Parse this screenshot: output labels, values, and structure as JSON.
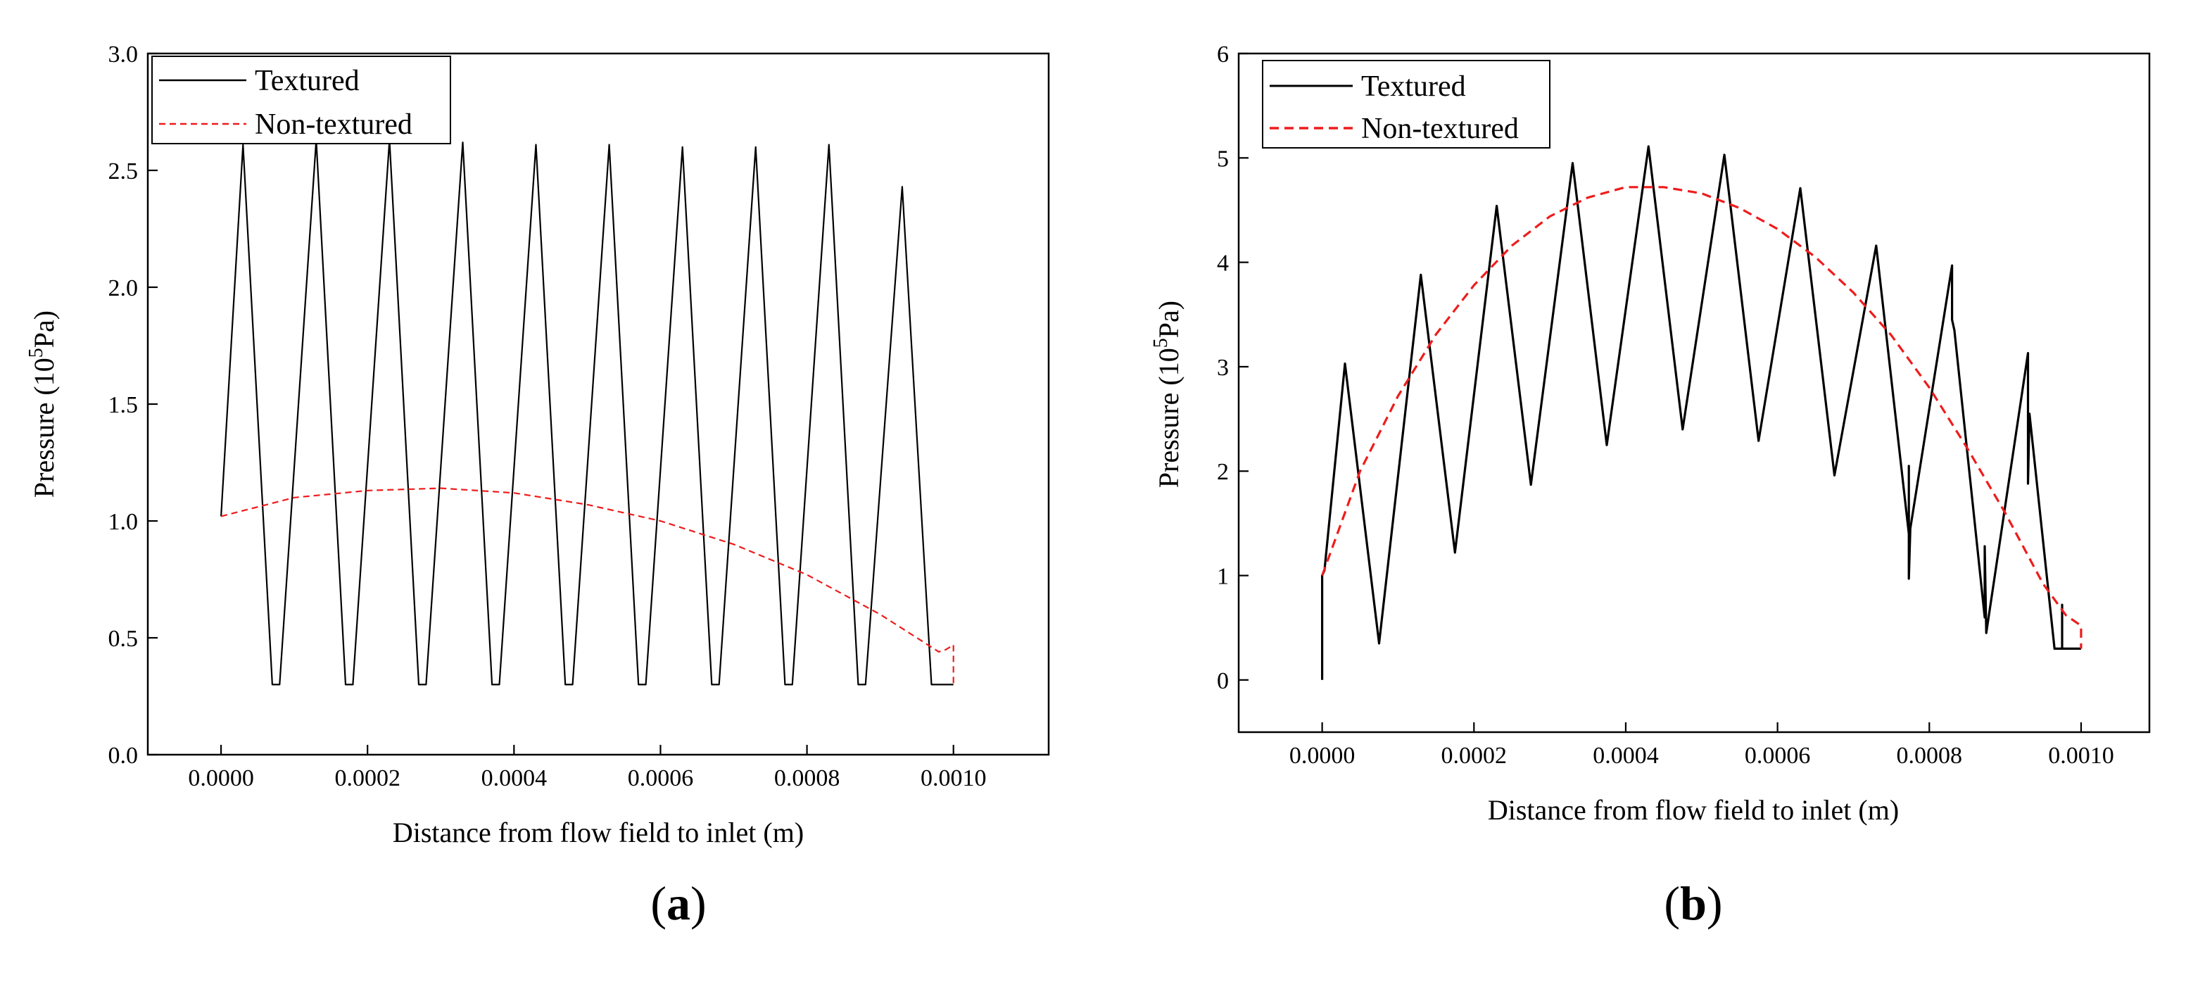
{
  "figure": {
    "panels": [
      {
        "label_open": "(",
        "label_letter": "a",
        "label_close": ")"
      },
      {
        "label_open": "(",
        "label_letter": "b",
        "label_close": ")"
      }
    ]
  },
  "chart_data": [
    {
      "type": "line",
      "id": "a",
      "title": "",
      "xlabel": "Distance from flow field to inlet (m)",
      "ylabel_prefix": "Pressure (10",
      "ylabel_sup": "5",
      "ylabel_suffix": "Pa)",
      "xlim": [
        -0.0001,
        0.00113
      ],
      "ylim": [
        0,
        3.0
      ],
      "xticks": [
        0,
        0.0002,
        0.0004,
        0.0006,
        0.0008,
        0.001
      ],
      "xtick_labels": [
        "0.0000",
        "0.0002",
        "0.0004",
        "0.0006",
        "0.0008",
        "0.0010"
      ],
      "yticks": [
        0,
        0.5,
        1.0,
        1.5,
        2.0,
        2.5,
        3.0
      ],
      "ytick_labels": [
        "0.0",
        "0.5",
        "1.0",
        "1.5",
        "2.0",
        "2.5",
        "3.0"
      ],
      "legend_position": "top-left",
      "series": [
        {
          "name": "Textured",
          "color": "#000000",
          "dash": "solid",
          "x": [
            0,
            3e-05,
            7e-05,
            8e-05,
            0.00013,
            0.00017,
            0.00018,
            0.00023,
            0.00027,
            0.00028,
            0.00033,
            0.00037,
            0.00038,
            0.00043,
            0.00047,
            0.00048,
            0.00053,
            0.00057,
            0.00058,
            0.00063,
            0.00067,
            0.00068,
            0.00073,
            0.00077,
            0.00078,
            0.00083,
            0.00087,
            0.00088,
            0.00093,
            0.00097,
            0.001
          ],
          "y": [
            1.02,
            2.61,
            0.3,
            0.3,
            2.63,
            0.3,
            0.3,
            2.63,
            0.3,
            0.3,
            2.62,
            0.3,
            0.3,
            2.61,
            0.3,
            0.3,
            2.61,
            0.3,
            0.3,
            2.6,
            0.3,
            0.3,
            2.6,
            0.3,
            0.3,
            2.61,
            0.3,
            0.3,
            2.43,
            0.3,
            0.3
          ]
        },
        {
          "name": "Non-textured",
          "color": "#ee1c1c",
          "dash": "dashed",
          "x": [
            0,
            0.0001,
            0.0002,
            0.0003,
            0.0004,
            0.0005,
            0.0006,
            0.0007,
            0.0008,
            0.0009,
            0.00098,
            0.00099,
            0.001,
            0.001
          ],
          "y": [
            1.02,
            1.1,
            1.13,
            1.14,
            1.12,
            1.07,
            1.0,
            0.9,
            0.77,
            0.6,
            0.44,
            0.45,
            0.47,
            0.3
          ]
        }
      ]
    },
    {
      "type": "line",
      "id": "b",
      "title": "",
      "xlabel": "Distance from flow field to inlet (m)",
      "ylabel_prefix": "Pressure (10",
      "ylabel_sup": "5",
      "ylabel_suffix": "Pa)",
      "xlim": [
        -0.00011,
        0.00109
      ],
      "ylim": [
        -0.5,
        6
      ],
      "xticks": [
        0,
        0.0002,
        0.0004,
        0.0006,
        0.0008,
        0.001
      ],
      "xtick_labels": [
        "0.0000",
        "0.0002",
        "0.0004",
        "0.0006",
        "0.0008",
        "0.0010"
      ],
      "yticks": [
        0,
        1,
        2,
        3,
        4,
        5,
        6
      ],
      "ytick_labels": [
        "0",
        "1",
        "2",
        "3",
        "4",
        "5",
        "6"
      ],
      "legend_position": "top-left",
      "series": [
        {
          "name": "Textured",
          "color": "#000000",
          "dash": "solid",
          "x": [
            0,
            0,
            3e-06,
            3e-05,
            7.5e-05,
            0.00013,
            0.000175,
            0.00023,
            0.000275,
            0.00033,
            0.000375,
            0.00043,
            0.000475,
            0.00053,
            0.000575,
            0.00063,
            0.000675,
            0.00073,
            0.000773,
            0.000773,
            0.000773,
            0.000775,
            0.00083,
            0.00083,
            0.000833,
            0.000873,
            0.000873,
            0.000875,
            0.00093,
            0.00093,
            0.000932,
            0.000965,
            0.000975,
            0.000975,
            0.000975,
            0.001
          ],
          "y": [
            0,
            1.0,
            1.05,
            3.03,
            0.35,
            3.88,
            1.22,
            4.54,
            1.87,
            4.95,
            2.25,
            5.11,
            2.4,
            5.03,
            2.29,
            4.71,
            1.96,
            4.16,
            1.4,
            2.05,
            0.97,
            1.45,
            3.97,
            3.45,
            3.35,
            0.6,
            1.28,
            0.45,
            3.13,
            1.88,
            2.55,
            0.3,
            0.3,
            0.72,
            0.3,
            0.3
          ]
        },
        {
          "name": "Non-textured",
          "color": "#ee1c1c",
          "dash": "dashed",
          "x": [
            0,
            5e-05,
            0.0001,
            0.00015,
            0.0002,
            0.00025,
            0.0003,
            0.00035,
            0.0004,
            0.00045,
            0.0005,
            0.00055,
            0.0006,
            0.00065,
            0.0007,
            0.00075,
            0.0008,
            0.00085,
            0.0009,
            0.00095,
            0.00098,
            0.001,
            0.001
          ],
          "y": [
            1.0,
            2.0,
            2.72,
            3.31,
            3.78,
            4.16,
            4.44,
            4.62,
            4.72,
            4.72,
            4.66,
            4.52,
            4.32,
            4.05,
            3.71,
            3.3,
            2.8,
            2.22,
            1.6,
            0.92,
            0.62,
            0.52,
            0.3
          ]
        }
      ]
    }
  ]
}
